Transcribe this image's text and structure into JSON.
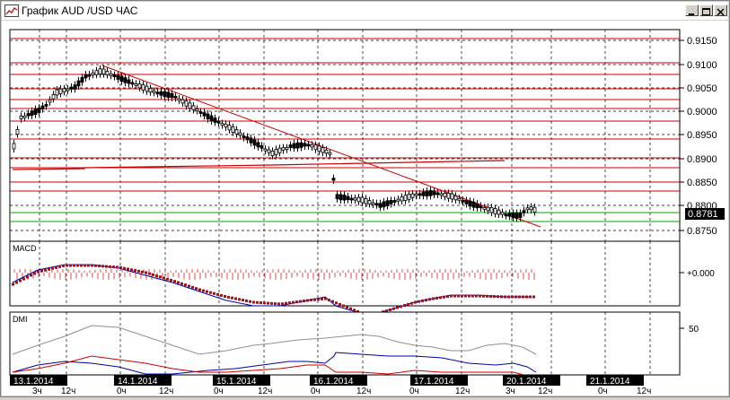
{
  "window": {
    "title": "График AUD /USD  ЧАС",
    "title_icon": "chart-icon",
    "buttons": [
      "minimize-icon",
      "maximize-icon",
      "close-icon"
    ]
  },
  "price_axis": {
    "labels": [
      "0.9150",
      "0.9100",
      "0.9050",
      "0.9000",
      "0.8950",
      "0.8900",
      "0.8850",
      "0.8800",
      "0.8750"
    ],
    "current": "0.8781"
  },
  "macd": {
    "title": "MACD",
    "zero_label": "+0.000"
  },
  "dmi": {
    "title": "DMI",
    "level_label": "50"
  },
  "time_axis": {
    "dates": [
      "13.1.2014",
      "14.1.2014",
      "15.1.2014",
      "16.1.2014",
      "17.1.2014",
      "20.1.2014",
      "21.1.2014"
    ],
    "hours": [
      "3ч",
      "12ч",
      "0ч",
      "12ч",
      "0ч",
      "12ч",
      "0ч",
      "12ч",
      "0ч",
      "12ч",
      "3ч",
      "12ч",
      "0ч",
      "12ч"
    ]
  },
  "colors": {
    "candle": "#000000",
    "support_resistance": "#cc0000",
    "trendline": "#cc0000",
    "green_level": "#00aa00",
    "macd_line": "#0000aa",
    "macd_signal": "#cc0000",
    "dmi_adx": "#808080",
    "dmi_plus": "#0000aa",
    "dmi_minus": "#cc0000"
  }
}
